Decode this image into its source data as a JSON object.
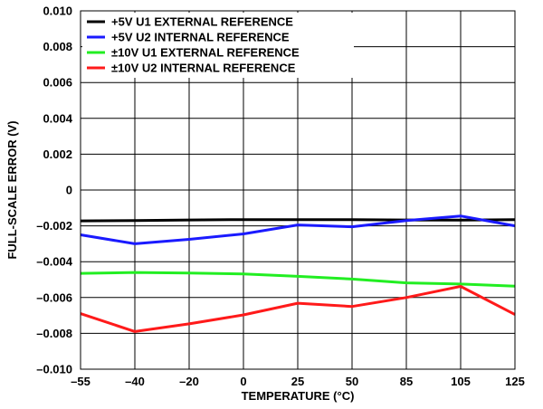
{
  "chart_data": {
    "type": "line",
    "xlabel": "TEMPERATURE (°C)",
    "ylabel": "FULL-SCALE ERROR (V)",
    "ylim": [
      -0.01,
      0.01
    ],
    "categories": [
      "–55",
      "–40",
      "–20",
      "0",
      "25",
      "50",
      "85",
      "105",
      "125"
    ],
    "y_ticks": [
      "0.010",
      "0.008",
      "0.006",
      "0.004",
      "0.002",
      "0",
      "–0.002",
      "–0.004",
      "–0.006",
      "–0.008",
      "–0.010"
    ],
    "grid": true,
    "legend_position": "top-left",
    "series": [
      {
        "name": "+5V U1 EXTERNAL REFERENCE",
        "color": "#000000",
        "values": [
          -0.00172,
          -0.0017,
          -0.00167,
          -0.00165,
          -0.00165,
          -0.00165,
          -0.00167,
          -0.00168,
          -0.00165
        ]
      },
      {
        "name": "+5V U2 INTERNAL REFERENCE",
        "color": "#1a1aff",
        "values": [
          -0.0025,
          -0.003,
          -0.00275,
          -0.00245,
          -0.00195,
          -0.00205,
          -0.0017,
          -0.00145,
          -0.002
        ]
      },
      {
        "name": "±10V U1 EXTERNAL REFERENCE",
        "color": "#22ee22",
        "values": [
          -0.00465,
          -0.0046,
          -0.00463,
          -0.00468,
          -0.00482,
          -0.00497,
          -0.00518,
          -0.00525,
          -0.00537
        ]
      },
      {
        "name": "±10V U2 INTERNAL REFERENCE",
        "color": "#ff1a1a",
        "values": [
          -0.0069,
          -0.0079,
          -0.00747,
          -0.00697,
          -0.00632,
          -0.0065,
          -0.006,
          -0.00538,
          -0.00695
        ]
      }
    ]
  }
}
